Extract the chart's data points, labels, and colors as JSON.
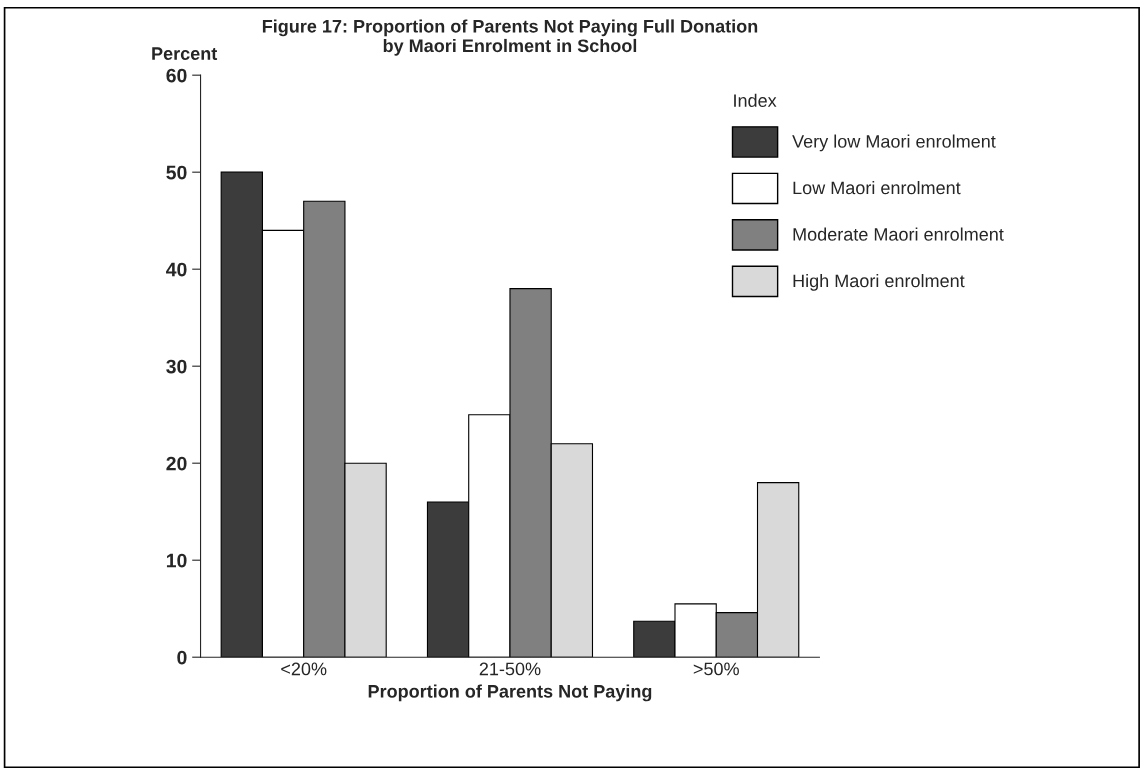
{
  "chart_data": {
    "type": "bar",
    "title": "Figure 17: Proportion of Parents Not Paying Full Donation\nby Maori Enrolment in School",
    "xlabel": "Proportion of Parents Not Paying",
    "ylabel": "Percent",
    "legend_title": "Index",
    "categories": [
      "<20%",
      "21-50%",
      ">50%"
    ],
    "series": [
      {
        "name": "Very low Maori enrolment",
        "color": "#3c3c3c",
        "values": [
          50,
          16,
          3.7
        ]
      },
      {
        "name": "Low Maori enrolment",
        "color": "#ffffff",
        "values": [
          44,
          25,
          5.5
        ]
      },
      {
        "name": "Moderate Maori enrolment",
        "color": "#808080",
        "values": [
          47,
          38,
          4.6
        ]
      },
      {
        "name": "High Maori enrolment",
        "color": "#d9d9d9",
        "values": [
          20,
          22,
          18
        ]
      }
    ],
    "ylim": [
      0,
      60
    ],
    "yticks": [
      0,
      10,
      20,
      30,
      40,
      50,
      60
    ],
    "grid": false,
    "legend": "top right"
  }
}
